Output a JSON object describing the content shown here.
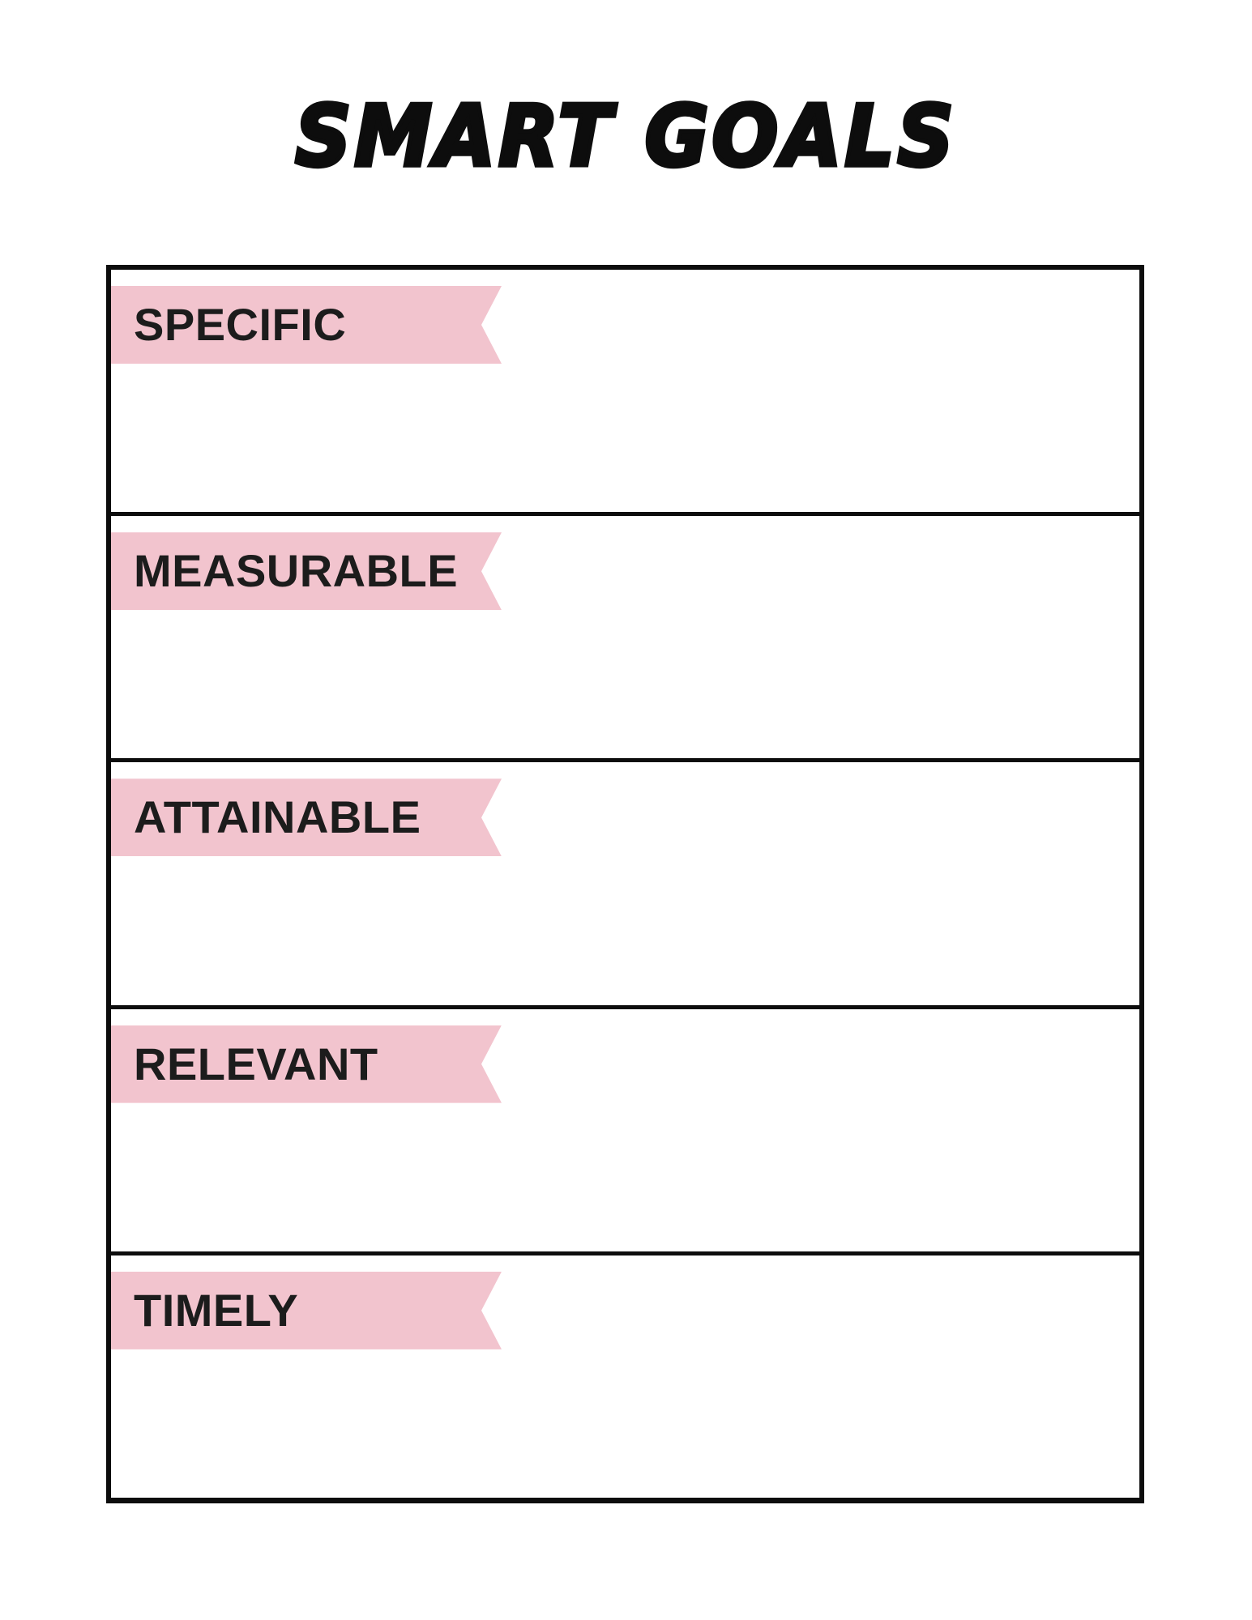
{
  "page": {
    "title": "SMART GOALS"
  },
  "colors": {
    "ribbon_pink": "#f2c4ce",
    "border_black": "#0d0d0d",
    "background": "#ffffff"
  },
  "table": {
    "rows": [
      {
        "label": "SPECIFIC"
      },
      {
        "label": "MEASURABLE"
      },
      {
        "label": "ATTAINABLE"
      },
      {
        "label": "RELEVANT"
      },
      {
        "label": "TIMELY"
      }
    ]
  }
}
